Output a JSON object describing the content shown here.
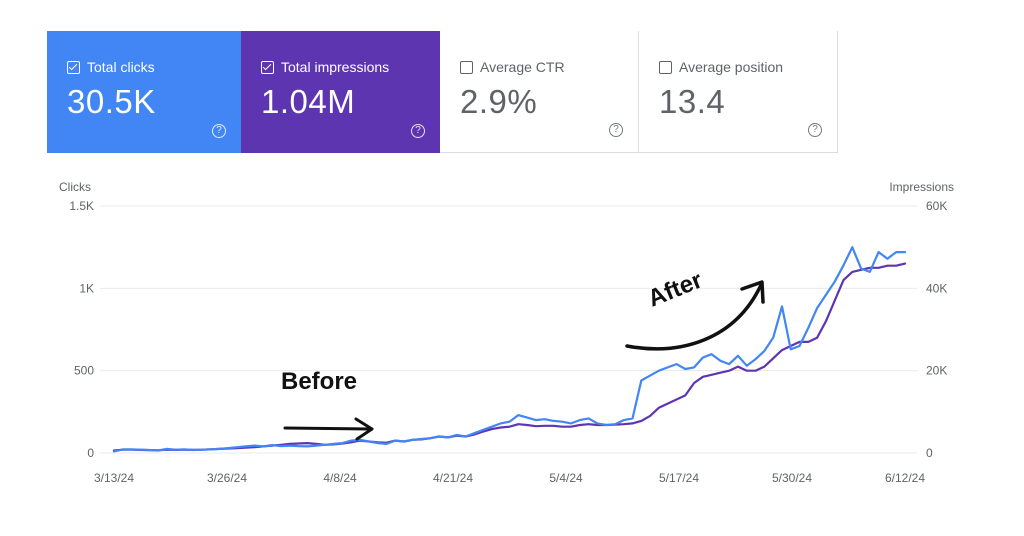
{
  "metrics": [
    {
      "label": "Total clicks",
      "value": "30.5K",
      "checked": true
    },
    {
      "label": "Total impressions",
      "value": "1.04M",
      "checked": true
    },
    {
      "label": "Average CTR",
      "value": "2.9%",
      "checked": false
    },
    {
      "label": "Average position",
      "value": "13.4",
      "checked": false
    }
  ],
  "help_glyph": "?",
  "annotations": {
    "before": "Before",
    "after": "After"
  },
  "colors": {
    "clicks": "#4285f4",
    "impressions": "#5e35b1",
    "grid": "#e8eaed",
    "annotation": "#111111"
  },
  "chart_data": {
    "type": "line",
    "title": "",
    "left_axis": {
      "label": "Clicks",
      "range": [
        0,
        1500
      ],
      "ticks": [
        "0",
        "500",
        "1K",
        "1.5K"
      ],
      "tick_values": [
        0,
        500,
        1000,
        1500
      ]
    },
    "right_axis": {
      "label": "Impressions",
      "range": [
        0,
        60000
      ],
      "ticks": [
        "0",
        "20K",
        "40K",
        "60K"
      ],
      "tick_values": [
        0,
        20000,
        40000,
        60000
      ]
    },
    "x_axis": {
      "range": [
        "2024-03-13",
        "2024-06-12"
      ],
      "ticks": [
        "3/13/24",
        "3/26/24",
        "4/8/24",
        "4/21/24",
        "5/4/24",
        "5/17/24",
        "5/30/24",
        "6/12/24"
      ]
    },
    "grid": true,
    "legend": "none",
    "series": [
      {
        "name": "Total clicks",
        "axis": "left",
        "values": [
          10,
          22,
          22,
          20,
          18,
          15,
          25,
          20,
          22,
          18,
          20,
          22,
          25,
          30,
          35,
          40,
          45,
          40,
          48,
          42,
          45,
          42,
          40,
          45,
          50,
          55,
          60,
          75,
          80,
          70,
          60,
          55,
          75,
          70,
          80,
          85,
          90,
          100,
          95,
          110,
          100,
          120,
          140,
          160,
          180,
          190,
          230,
          215,
          200,
          205,
          195,
          190,
          180,
          200,
          210,
          180,
          170,
          175,
          200,
          210,
          440,
          470,
          500,
          520,
          540,
          510,
          520,
          580,
          600,
          560,
          540,
          590,
          530,
          570,
          620,
          700,
          890,
          630,
          650,
          760,
          880,
          960,
          1040,
          1140,
          1250,
          1120,
          1100,
          1220,
          1180,
          1220,
          1220
        ]
      },
      {
        "name": "Total impressions",
        "axis": "right",
        "values": [
          600,
          800,
          800,
          750,
          700,
          650,
          800,
          750,
          800,
          750,
          800,
          900,
          1000,
          1100,
          1200,
          1300,
          1400,
          1600,
          1800,
          2000,
          2200,
          2300,
          2400,
          2200,
          2000,
          2100,
          2300,
          2600,
          3000,
          2800,
          2600,
          2500,
          3000,
          2800,
          3200,
          3300,
          3600,
          4000,
          3800,
          4200,
          4000,
          4500,
          5200,
          5800,
          6200,
          6400,
          7000,
          6800,
          6500,
          6600,
          6600,
          6400,
          6400,
          6800,
          7000,
          6800,
          6800,
          6900,
          7000,
          7200,
          7800,
          9000,
          11000,
          12000,
          13000,
          14000,
          17000,
          18500,
          19000,
          19500,
          20000,
          21000,
          20000,
          20000,
          21000,
          23000,
          25000,
          26000,
          27000,
          27000,
          28000,
          32000,
          37000,
          42000,
          44000,
          44500,
          45000,
          45000,
          45500,
          45500,
          46000
        ]
      }
    ]
  }
}
